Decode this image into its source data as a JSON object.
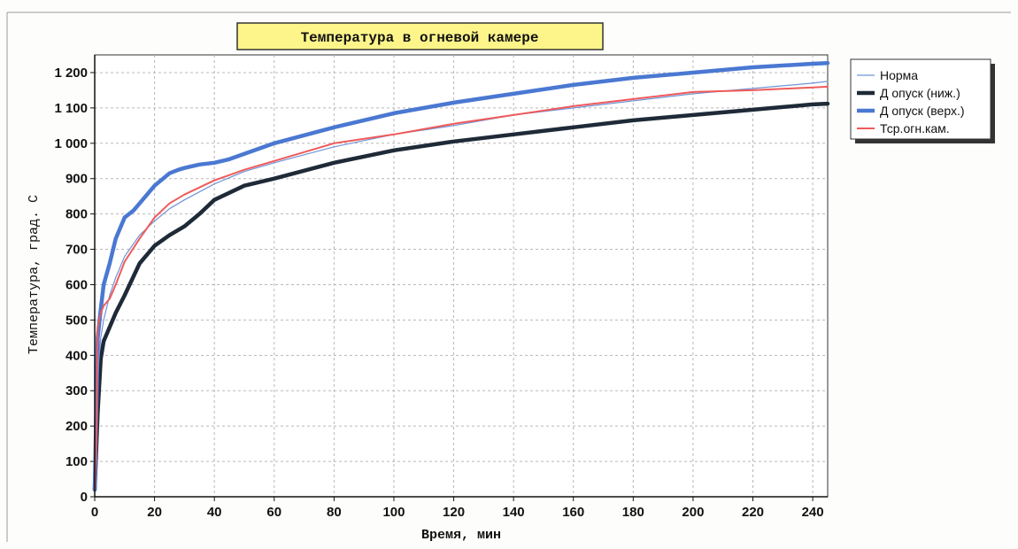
{
  "chart_data": {
    "type": "line",
    "title": "Температура в огневой камере",
    "xlabel": "Время, мин",
    "ylabel": "Температура, град. C",
    "xlim": [
      0,
      245
    ],
    "ylim": [
      0,
      1250
    ],
    "xticks": [
      0,
      20,
      40,
      60,
      80,
      100,
      120,
      140,
      160,
      180,
      200,
      220,
      240
    ],
    "yticks": [
      0,
      100,
      200,
      300,
      400,
      500,
      600,
      700,
      800,
      900,
      1000,
      1100,
      1200
    ],
    "ytick_labels": [
      "0",
      "100",
      "200",
      "300",
      "400",
      "500",
      "600",
      "700",
      "800",
      "900",
      "1 000",
      "1 100",
      "1 200"
    ],
    "grid": true,
    "legend_position": "right",
    "series": [
      {
        "name": "Норма",
        "color": "#6f94d6",
        "x": [
          0,
          1,
          2,
          3,
          5,
          7,
          10,
          15,
          20,
          25,
          30,
          40,
          50,
          60,
          80,
          100,
          120,
          140,
          160,
          180,
          200,
          220,
          240,
          245
        ],
        "y": [
          20,
          350,
          450,
          500,
          570,
          620,
          680,
          740,
          780,
          815,
          840,
          885,
          920,
          945,
          990,
          1025,
          1050,
          1080,
          1100,
          1120,
          1140,
          1155,
          1170,
          1175
        ]
      },
      {
        "name": "Д опуск (ниж.)",
        "color": "#1f2a38",
        "x": [
          0,
          1,
          2,
          3,
          5,
          7,
          10,
          15,
          20,
          25,
          30,
          35,
          40,
          50,
          60,
          80,
          100,
          120,
          140,
          160,
          180,
          200,
          220,
          240,
          245
        ],
        "y": [
          20,
          240,
          390,
          440,
          480,
          520,
          570,
          660,
          710,
          740,
          765,
          800,
          840,
          880,
          900,
          945,
          980,
          1005,
          1025,
          1045,
          1065,
          1080,
          1095,
          1110,
          1112
        ]
      },
      {
        "name": "Д опуск (верх.)",
        "color": "#4a78d2",
        "x": [
          0,
          1,
          2,
          3,
          5,
          7,
          10,
          13,
          15,
          20,
          25,
          28,
          30,
          35,
          40,
          45,
          50,
          60,
          80,
          100,
          120,
          140,
          160,
          180,
          200,
          220,
          240,
          245
        ],
        "y": [
          20,
          450,
          530,
          600,
          660,
          730,
          790,
          810,
          830,
          880,
          915,
          925,
          930,
          940,
          945,
          955,
          970,
          1000,
          1045,
          1085,
          1115,
          1140,
          1165,
          1185,
          1200,
          1215,
          1225,
          1227
        ]
      },
      {
        "name": "Тср.огн.кам.",
        "color": "#ef5a5a",
        "x": [
          0,
          0.5,
          1,
          2,
          3,
          5,
          7,
          10,
          15,
          20,
          25,
          30,
          40,
          50,
          60,
          80,
          100,
          120,
          140,
          160,
          180,
          200,
          220,
          240,
          245
        ],
        "y": [
          20,
          150,
          480,
          520,
          540,
          560,
          600,
          665,
          730,
          790,
          830,
          855,
          895,
          925,
          950,
          1000,
          1025,
          1055,
          1080,
          1105,
          1125,
          1145,
          1150,
          1158,
          1160
        ]
      }
    ]
  }
}
